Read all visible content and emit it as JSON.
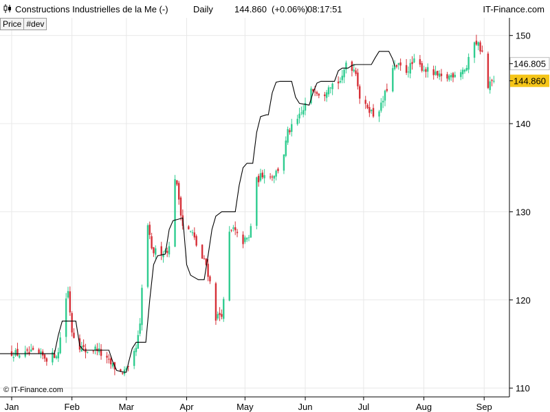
{
  "header": {
    "title": "Constructions Industrielles de la Me (-)",
    "period": "Daily",
    "price": "144.860",
    "change": "(+0.06%)",
    "time": "08:17:51",
    "brand": "IT-Finance.com"
  },
  "tabs": [
    {
      "label": "Price"
    },
    {
      "label": "#dev"
    }
  ],
  "copyright": "© IT-Finance.com",
  "colors": {
    "up": "#2ecc8f",
    "down": "#d62f37",
    "line": "#000000",
    "grid": "#e8e8e8",
    "last_price_bg": "#f5c518"
  },
  "chart_data": {
    "type": "candlestick",
    "ylim": [
      109,
      152
    ],
    "y_ticks": [
      110,
      120,
      130,
      140,
      150
    ],
    "x_ticks": [
      {
        "label": "Jan",
        "day": 0
      },
      {
        "label": "Feb",
        "day": 31
      },
      {
        "label": "Mar",
        "day": 59
      },
      {
        "label": "Apr",
        "day": 90
      },
      {
        "label": "May",
        "day": 120
      },
      {
        "label": "Jun",
        "day": 151
      },
      {
        "label": "Jul",
        "day": 181
      },
      {
        "label": "Aug",
        "day": 212
      },
      {
        "label": "Sep",
        "day": 243
      }
    ],
    "xlim": [
      -6,
      256
    ],
    "price_labels": [
      {
        "value": 146.805,
        "text": "146.805",
        "style": "plain"
      },
      {
        "value": 144.86,
        "text": "144.860",
        "style": "highlight"
      }
    ],
    "close_anchors": [
      [
        0,
        114.0
      ],
      [
        6,
        113.8
      ],
      [
        12,
        114.0
      ],
      [
        18,
        113.4
      ],
      [
        24,
        114.0
      ],
      [
        27,
        119.5
      ],
      [
        29,
        121.0
      ],
      [
        31,
        116.5
      ],
      [
        34,
        115.0
      ],
      [
        38,
        114.2
      ],
      [
        44,
        114.5
      ],
      [
        47,
        113.5
      ],
      [
        52,
        112.5
      ],
      [
        56,
        111.8
      ],
      [
        60,
        112.0
      ],
      [
        64,
        114.5
      ],
      [
        66,
        117.0
      ],
      [
        68,
        125.5
      ],
      [
        70,
        128.5
      ],
      [
        72,
        125.5
      ],
      [
        78,
        125.5
      ],
      [
        82,
        126.0
      ],
      [
        84,
        134.0
      ],
      [
        86,
        131.5
      ],
      [
        88,
        128.5
      ],
      [
        93,
        127.5
      ],
      [
        97,
        125.0
      ],
      [
        100,
        124.0
      ],
      [
        103,
        121.0
      ],
      [
        105,
        118.0
      ],
      [
        108,
        118.5
      ],
      [
        110,
        121.0
      ],
      [
        112,
        127.5
      ],
      [
        114,
        128.0
      ],
      [
        118,
        126.5
      ],
      [
        122,
        127.0
      ],
      [
        124,
        130.0
      ],
      [
        126,
        133.5
      ],
      [
        130,
        134.5
      ],
      [
        133,
        134.0
      ],
      [
        136,
        134.5
      ],
      [
        139,
        135.5
      ],
      [
        142,
        139.0
      ],
      [
        146,
        140.0
      ],
      [
        150,
        141.5
      ],
      [
        153,
        143.5
      ],
      [
        156,
        144.0
      ],
      [
        160,
        143.0
      ],
      [
        163,
        144.5
      ],
      [
        166,
        144.5
      ],
      [
        170,
        145.0
      ],
      [
        172,
        147.0
      ],
      [
        177,
        146.0
      ],
      [
        180,
        141.5
      ],
      [
        183,
        142.0
      ],
      [
        186,
        141.0
      ],
      [
        190,
        142.0
      ],
      [
        193,
        144.0
      ],
      [
        195,
        146.0
      ],
      [
        199,
        146.5
      ],
      [
        203,
        146.0
      ],
      [
        207,
        147.0
      ],
      [
        210,
        146.5
      ],
      [
        214,
        146.0
      ],
      [
        218,
        145.5
      ],
      [
        222,
        145.0
      ],
      [
        226,
        145.5
      ],
      [
        230,
        146.0
      ],
      [
        234,
        146.3
      ],
      [
        236,
        148.0
      ],
      [
        238,
        149.5
      ],
      [
        240,
        149.0
      ],
      [
        242,
        148.0
      ],
      [
        244,
        143.5
      ],
      [
        246,
        144.5
      ],
      [
        248,
        144.86
      ]
    ],
    "trend_line": [
      [
        -6,
        113.9
      ],
      [
        22,
        113.9
      ],
      [
        24,
        116.0
      ],
      [
        26,
        117.6
      ],
      [
        33,
        117.6
      ],
      [
        35,
        114.8
      ],
      [
        37,
        114.3
      ],
      [
        50,
        114.3
      ],
      [
        52,
        113.0
      ],
      [
        54,
        112.0
      ],
      [
        58,
        111.8
      ],
      [
        59,
        111.8
      ],
      [
        60,
        112.8
      ],
      [
        62,
        114.5
      ],
      [
        64,
        115.2
      ],
      [
        69,
        115.2
      ],
      [
        71,
        120.0
      ],
      [
        73,
        124.0
      ],
      [
        75,
        125.0
      ],
      [
        79,
        125.2
      ],
      [
        81,
        128.0
      ],
      [
        83,
        129.0
      ],
      [
        88,
        129.3
      ],
      [
        90,
        124.0
      ],
      [
        92,
        122.8
      ],
      [
        96,
        122.3
      ],
      [
        99,
        122.3
      ],
      [
        101,
        125.0
      ],
      [
        103,
        128.0
      ],
      [
        105,
        129.5
      ],
      [
        108,
        130.0
      ],
      [
        115,
        130.0
      ],
      [
        117,
        133.0
      ],
      [
        119,
        135.0
      ],
      [
        121,
        135.5
      ],
      [
        124,
        135.5
      ],
      [
        126,
        139.0
      ],
      [
        128,
        140.8
      ],
      [
        131,
        141.0
      ],
      [
        132,
        141.0
      ],
      [
        134,
        143.5
      ],
      [
        136,
        144.7
      ],
      [
        138,
        144.8
      ],
      [
        144,
        144.8
      ],
      [
        146,
        143.0
      ],
      [
        148,
        142.3
      ],
      [
        153,
        142.1
      ],
      [
        155,
        143.5
      ],
      [
        157,
        144.6
      ],
      [
        159,
        144.8
      ],
      [
        166,
        144.8
      ],
      [
        168,
        146.0
      ],
      [
        170,
        146.3
      ],
      [
        173,
        146.3
      ],
      [
        175,
        146.6
      ],
      [
        177,
        146.7
      ],
      [
        185,
        146.7
      ],
      [
        187,
        147.5
      ],
      [
        189,
        148.2
      ],
      [
        194,
        148.2
      ],
      [
        196,
        147.3
      ],
      [
        197,
        146.5
      ]
    ]
  }
}
